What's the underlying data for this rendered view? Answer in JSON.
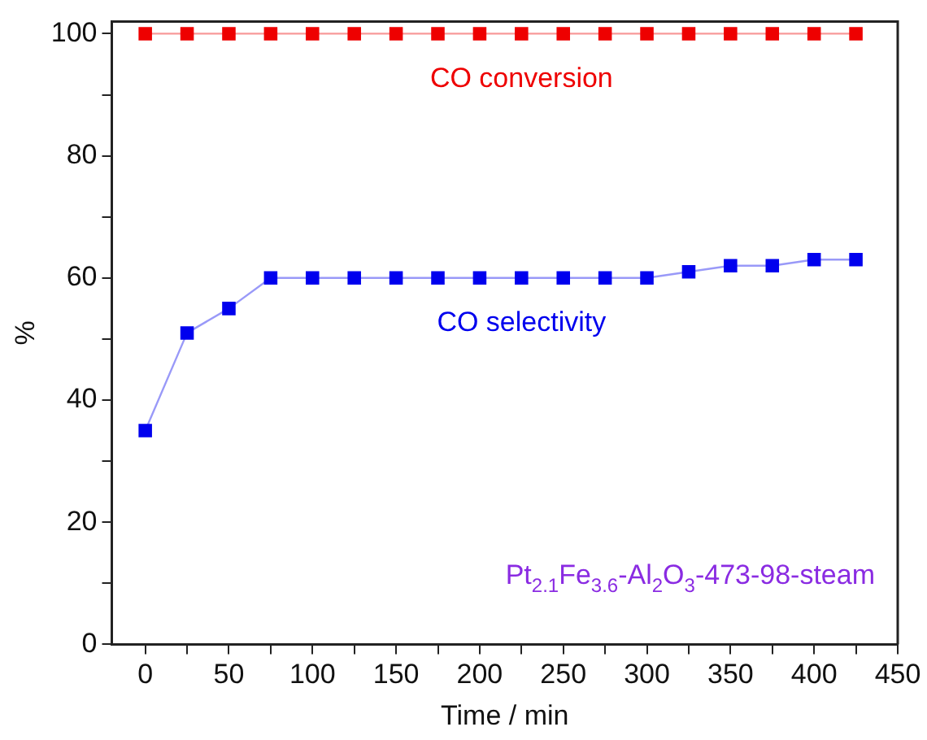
{
  "chart_data": {
    "type": "line",
    "xlabel": "Time / min",
    "ylabel": "%",
    "x": [
      0,
      25,
      50,
      75,
      100,
      125,
      150,
      175,
      200,
      225,
      250,
      275,
      300,
      325,
      350,
      375,
      400,
      425
    ],
    "series": [
      {
        "name": "CO conversion",
        "color": "#ee0000",
        "values": [
          100,
          100,
          100,
          100,
          100,
          100,
          100,
          100,
          100,
          100,
          100,
          100,
          100,
          100,
          100,
          100,
          100,
          100
        ]
      },
      {
        "name": "CO selectivity",
        "color": "#0000ee",
        "values": [
          35,
          51,
          55,
          60,
          60,
          60,
          60,
          60,
          60,
          60,
          60,
          60,
          60,
          61,
          62,
          62,
          63,
          63
        ]
      }
    ],
    "xlim": [
      -20,
      450
    ],
    "xticks": [
      0,
      {
        "value": 25,
        "label": null
      },
      50,
      {
        "value": 75,
        "label": null
      },
      100,
      {
        "value": 125,
        "label": null
      },
      150,
      {
        "value": 175,
        "label": null
      },
      200,
      {
        "value": 225,
        "label": null
      },
      250,
      {
        "value": 275,
        "label": null
      },
      300,
      {
        "value": 325,
        "label": null
      },
      350,
      {
        "value": 375,
        "label": null
      },
      400,
      {
        "value": 425,
        "label": null
      },
      450
    ],
    "ylim": [
      0,
      102
    ],
    "yticks": [
      0,
      {
        "value": 10,
        "label": null
      },
      20,
      {
        "value": 30,
        "label": null
      },
      40,
      {
        "value": 50,
        "label": null
      },
      60,
      {
        "value": 70,
        "label": null
      },
      80,
      {
        "value": 90,
        "label": null
      },
      100
    ],
    "annotations": [
      "Pt$_{2.1}$Fe$_{3.6}$-Al$_{2}$O$_{3}$-473-98-steam"
    ],
    "marker": "square",
    "line_style": "solid",
    "grid": false,
    "legend": false
  }
}
